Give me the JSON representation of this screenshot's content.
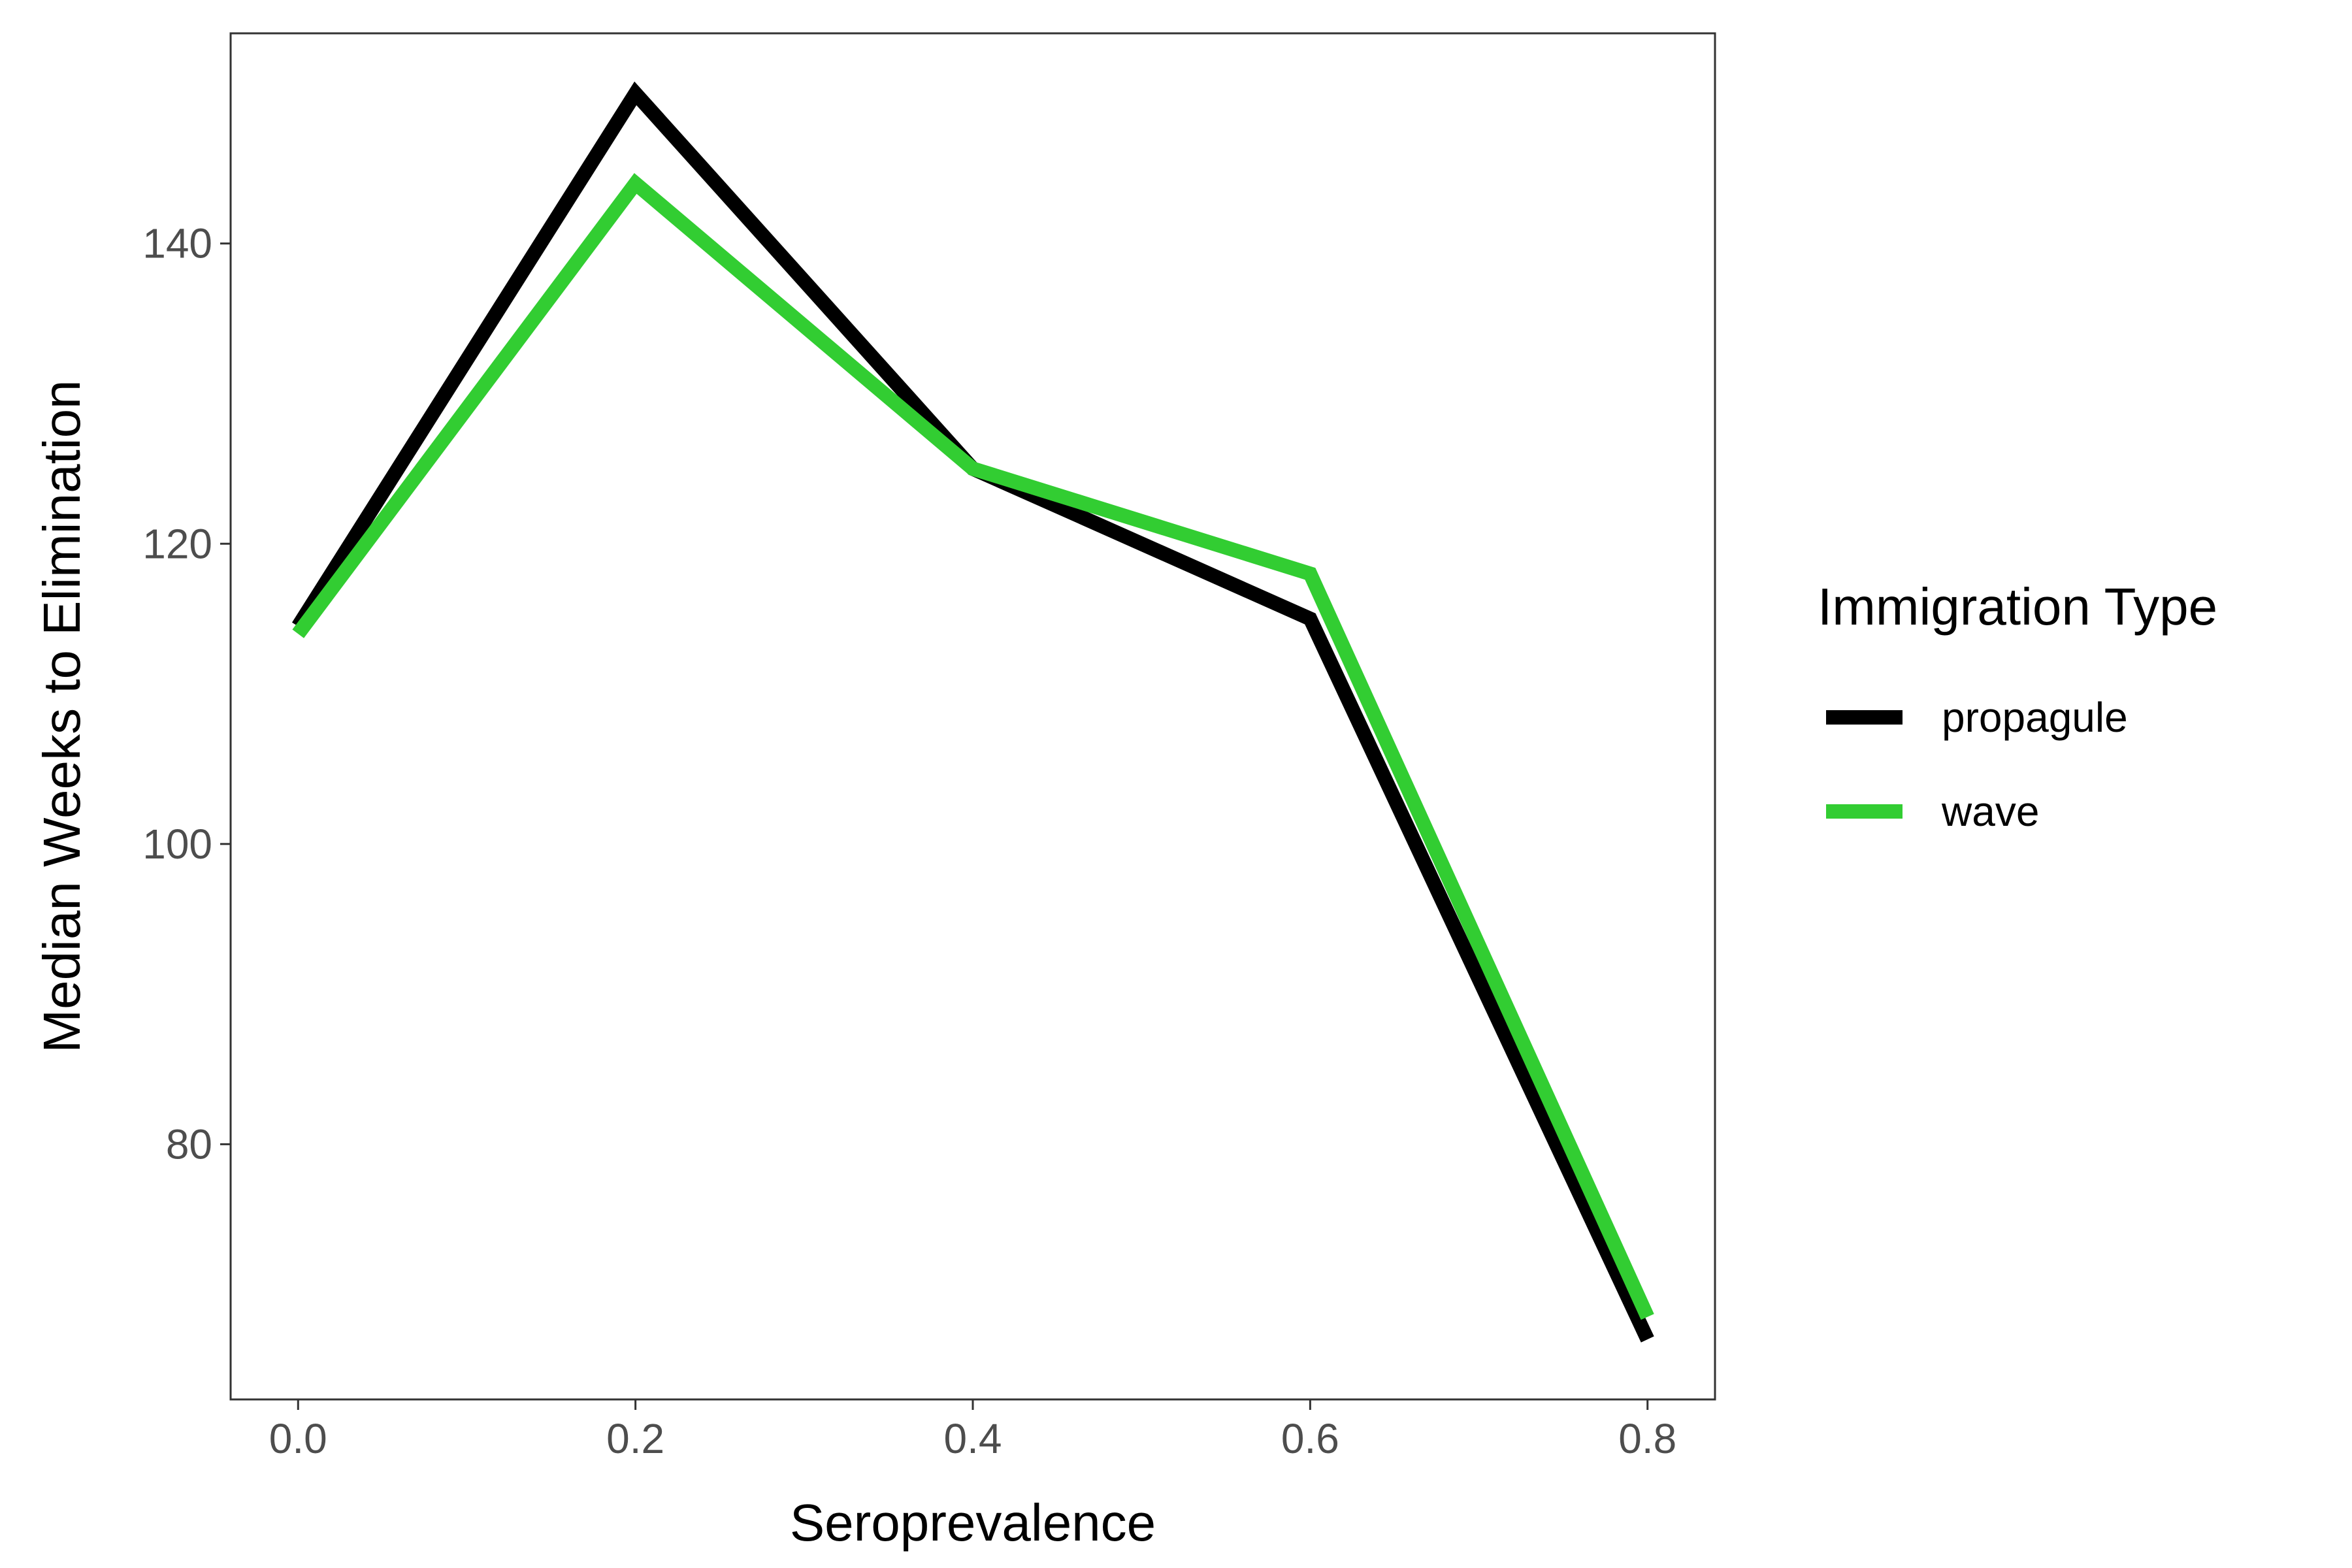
{
  "chart_data": {
    "type": "line",
    "x": [
      0.0,
      0.2,
      0.4,
      0.6,
      0.8
    ],
    "xlabel": "Seroprevalence",
    "ylabel": "Median Weeks to Elimination",
    "xlim": [
      -0.04,
      0.84
    ],
    "ylim": [
      63.0,
      154.0
    ],
    "x_ticks": [
      0.0,
      0.2,
      0.4,
      0.6,
      0.8
    ],
    "x_tick_labels": [
      "0.0",
      "0.2",
      "0.4",
      "0.6",
      "0.8"
    ],
    "y_ticks": [
      80,
      100,
      120,
      140
    ],
    "y_tick_labels": [
      "80",
      "100",
      "120",
      "140"
    ],
    "grid": false,
    "legend": {
      "title": "Immigration Type",
      "placement": "right"
    },
    "series": [
      {
        "name": "propagule",
        "color": "#000000",
        "values": [
          114.5,
          150.0,
          125.0,
          115.0,
          67.0
        ]
      },
      {
        "name": "wave",
        "color": "#32CD32",
        "values": [
          114.0,
          144.0,
          125.0,
          118.0,
          68.5
        ]
      }
    ]
  }
}
